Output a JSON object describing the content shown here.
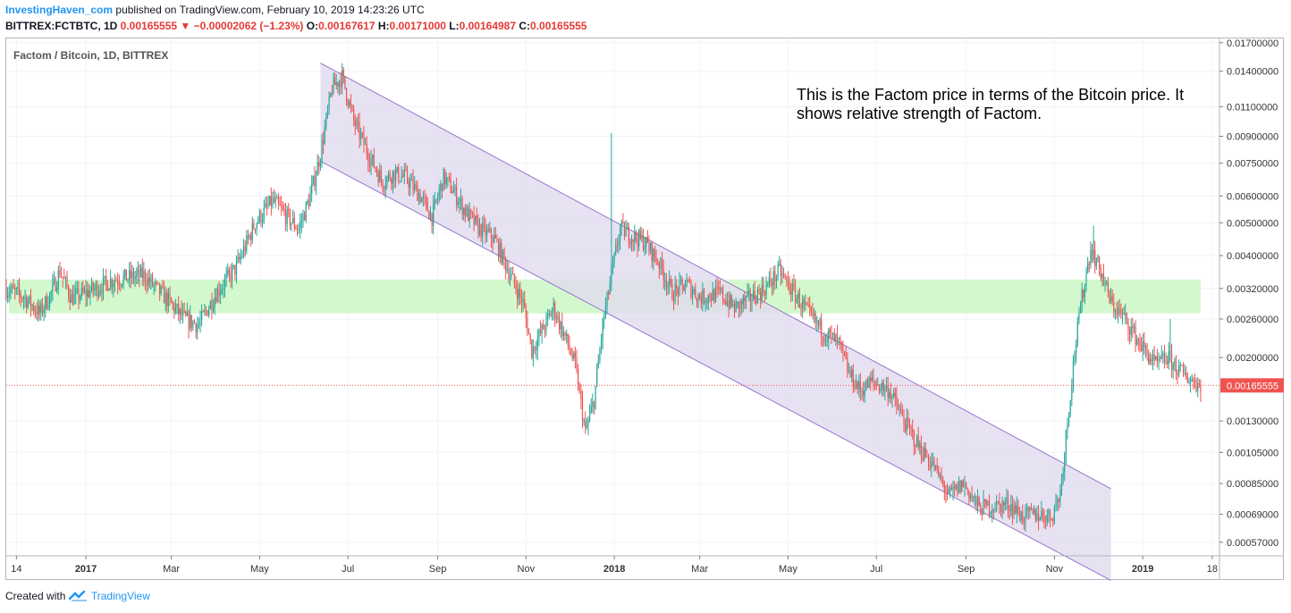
{
  "header": {
    "brand": "InvestingHaven_com",
    "published": "published on TradingView.com, February 10, 2019 14:23:26 UTC",
    "symbol": "BITTREX:FCTBTC, 1D",
    "last": "0.00165555",
    "change": "−0.00002062 (−1.23%)",
    "o_label": "O:",
    "o": "0.00167617",
    "h_label": "H:",
    "h": "0.00171000",
    "l_label": "L:",
    "l": "0.00164987",
    "c_label": "C:",
    "c": "0.00165555"
  },
  "legend_title": "Factom / Bitcoin, 1D, BITTREX",
  "annotation": "This is the Factom price in terms of the Bitcoin price. It shows relative strength of Factom.",
  "footer": {
    "created_with": "Created with",
    "tradingview": "TradingView"
  },
  "colors": {
    "up": "#26a69a",
    "down": "#ef5350",
    "support_zone": "#ccf7c6",
    "channel_fill": "#e1dbef",
    "channel_line": "#9575cd",
    "price_line": "#ef5350"
  },
  "chart_data": {
    "type": "candlestick",
    "title": "Factom / Bitcoin, 1D, BITTREX",
    "y_scale": "log",
    "ylim": [
      0.00052,
      0.0175
    ],
    "y_ticks": [
      "0.01700000",
      "0.01400000",
      "0.01100000",
      "0.00900000",
      "0.00750000",
      "0.00600000",
      "0.00500000",
      "0.00400000",
      "0.00320000",
      "0.00260000",
      "0.00200000",
      "0.00130000",
      "0.00105000",
      "0.00085000",
      "0.00069000",
      "0.00057000"
    ],
    "x_ticks": [
      {
        "label": "14",
        "date": "2016-11-14",
        "bold": false
      },
      {
        "label": "2017",
        "date": "2017-01-01",
        "bold": true
      },
      {
        "label": "Mar",
        "date": "2017-03-01",
        "bold": false
      },
      {
        "label": "May",
        "date": "2017-05-01",
        "bold": false
      },
      {
        "label": "Jul",
        "date": "2017-07-01",
        "bold": false
      },
      {
        "label": "Sep",
        "date": "2017-09-01",
        "bold": false
      },
      {
        "label": "Nov",
        "date": "2017-11-01",
        "bold": false
      },
      {
        "label": "2018",
        "date": "2018-01-01",
        "bold": true
      },
      {
        "label": "Mar",
        "date": "2018-03-01",
        "bold": false
      },
      {
        "label": "May",
        "date": "2018-05-01",
        "bold": false
      },
      {
        "label": "Jul",
        "date": "2018-07-01",
        "bold": false
      },
      {
        "label": "Sep",
        "date": "2018-09-01",
        "bold": false
      },
      {
        "label": "Nov",
        "date": "2018-11-01",
        "bold": false
      },
      {
        "label": "2019",
        "date": "2019-01-01",
        "bold": true
      },
      {
        "label": "18",
        "date": "2019-02-18",
        "bold": false
      }
    ],
    "x_range": [
      "2016-11-07",
      "2019-02-23"
    ],
    "last_price": 0.00165555,
    "last_price_label": "0.00165555",
    "support_zone": [
      0.0027,
      0.0034
    ],
    "support_zone_dates": [
      "2016-11-07",
      "2019-02-10"
    ],
    "channel": {
      "upper_start": {
        "date": "2017-06-12",
        "price": 0.0148
      },
      "upper_end": {
        "date": "2018-12-10",
        "price": 0.00082
      },
      "lower_start": {
        "date": "2017-06-12",
        "price": 0.0076
      },
      "lower_end": {
        "date": "2018-12-10",
        "price": 0.00044
      }
    },
    "price_path": [
      [
        "2016-11-07",
        0.0032
      ],
      [
        "2016-11-20",
        0.003
      ],
      [
        "2016-11-30",
        0.0027
      ],
      [
        "2016-12-08",
        0.0031
      ],
      [
        "2016-12-14",
        0.0036
      ],
      [
        "2016-12-22",
        0.003
      ],
      [
        "2017-01-01",
        0.0031
      ],
      [
        "2017-01-20",
        0.0034
      ],
      [
        "2017-02-10",
        0.0035
      ],
      [
        "2017-02-25",
        0.003
      ],
      [
        "2017-03-10",
        0.0026
      ],
      [
        "2017-03-20",
        0.0025
      ],
      [
        "2017-04-01",
        0.0031
      ],
      [
        "2017-04-15",
        0.0037
      ],
      [
        "2017-04-28",
        0.005
      ],
      [
        "2017-05-10",
        0.0058
      ],
      [
        "2017-05-20",
        0.0052
      ],
      [
        "2017-05-28",
        0.0048
      ],
      [
        "2017-06-05",
        0.006
      ],
      [
        "2017-06-12",
        0.008
      ],
      [
        "2017-06-20",
        0.0125
      ],
      [
        "2017-06-27",
        0.0135
      ],
      [
        "2017-07-05",
        0.01
      ],
      [
        "2017-07-15",
        0.008
      ],
      [
        "2017-07-25",
        0.0066
      ],
      [
        "2017-08-01",
        0.007
      ],
      [
        "2017-08-10",
        0.0068
      ],
      [
        "2017-08-20",
        0.006
      ],
      [
        "2017-08-28",
        0.0052
      ],
      [
        "2017-09-05",
        0.0068
      ],
      [
        "2017-09-12",
        0.0062
      ],
      [
        "2017-09-20",
        0.0054
      ],
      [
        "2017-09-30",
        0.0048
      ],
      [
        "2017-10-10",
        0.0045
      ],
      [
        "2017-10-20",
        0.0036
      ],
      [
        "2017-10-30",
        0.0029
      ],
      [
        "2017-11-05",
        0.0021
      ],
      [
        "2017-11-12",
        0.0024
      ],
      [
        "2017-11-20",
        0.0028
      ],
      [
        "2017-11-28",
        0.0023
      ],
      [
        "2017-12-05",
        0.0019
      ],
      [
        "2017-12-12",
        0.0012
      ],
      [
        "2017-12-18",
        0.0015
      ],
      [
        "2017-12-24",
        0.0025
      ],
      [
        "2017-12-30",
        0.0035
      ],
      [
        "2018-01-05",
        0.0048
      ],
      [
        "2018-01-12",
        0.0046
      ],
      [
        "2018-01-22",
        0.0044
      ],
      [
        "2018-02-01",
        0.0038
      ],
      [
        "2018-02-10",
        0.0031
      ],
      [
        "2018-02-20",
        0.0033
      ],
      [
        "2018-03-01",
        0.003
      ],
      [
        "2018-03-15",
        0.0031
      ],
      [
        "2018-03-25",
        0.0028
      ],
      [
        "2018-04-05",
        0.003
      ],
      [
        "2018-04-15",
        0.0032
      ],
      [
        "2018-04-25",
        0.0036
      ],
      [
        "2018-05-05",
        0.0031
      ],
      [
        "2018-05-15",
        0.0027
      ],
      [
        "2018-05-25",
        0.0024
      ],
      [
        "2018-06-05",
        0.0022
      ],
      [
        "2018-06-12",
        0.0018
      ],
      [
        "2018-06-20",
        0.0016
      ],
      [
        "2018-06-28",
        0.0017
      ],
      [
        "2018-07-10",
        0.0016
      ],
      [
        "2018-07-20",
        0.0013
      ],
      [
        "2018-07-30",
        0.0011
      ],
      [
        "2018-08-10",
        0.00095
      ],
      [
        "2018-08-20",
        0.00078
      ],
      [
        "2018-08-30",
        0.00085
      ],
      [
        "2018-09-10",
        0.00072
      ],
      [
        "2018-09-20",
        0.00073
      ],
      [
        "2018-10-01",
        0.00074
      ],
      [
        "2018-10-10",
        0.00068
      ],
      [
        "2018-10-20",
        0.00069
      ],
      [
        "2018-10-30",
        0.00068
      ],
      [
        "2018-11-05",
        0.0008
      ],
      [
        "2018-11-10",
        0.0013
      ],
      [
        "2018-11-15",
        0.0021
      ],
      [
        "2018-11-20",
        0.003
      ],
      [
        "2018-11-26",
        0.0042
      ],
      [
        "2018-12-03",
        0.0036
      ],
      [
        "2018-12-10",
        0.0029
      ],
      [
        "2018-12-20",
        0.0026
      ],
      [
        "2018-12-30",
        0.0022
      ],
      [
        "2019-01-10",
        0.0019
      ],
      [
        "2019-01-18",
        0.002
      ],
      [
        "2019-01-28",
        0.0018
      ],
      [
        "2019-02-05",
        0.0017
      ],
      [
        "2019-02-10",
        0.00166
      ]
    ],
    "spikes": [
      {
        "date": "2017-12-30",
        "price": 0.0092
      },
      {
        "date": "2018-11-28",
        "price": 0.0049
      },
      {
        "date": "2019-01-20",
        "price": 0.0026
      }
    ]
  }
}
